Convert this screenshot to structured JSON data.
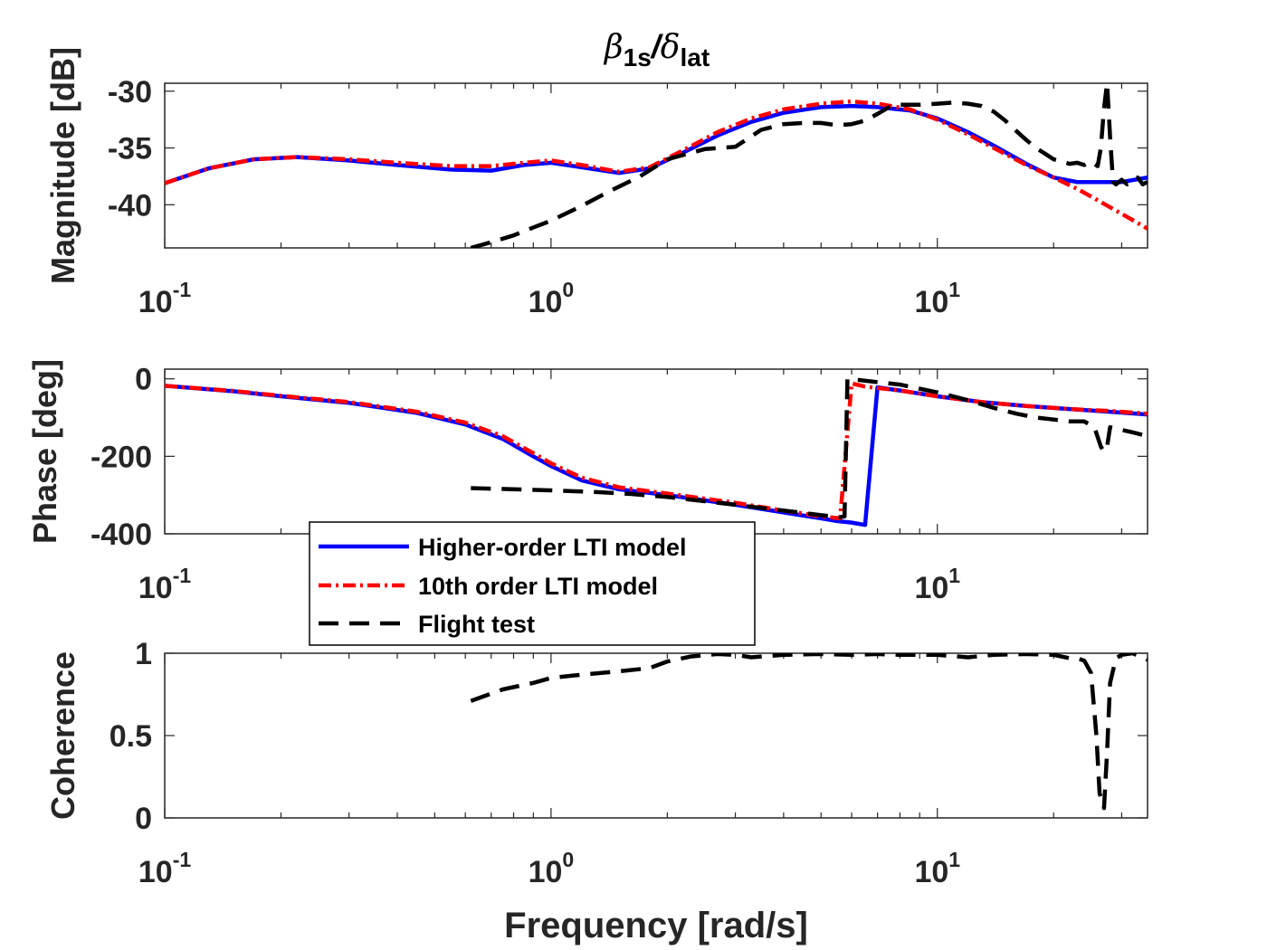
{
  "chart_data": {
    "type": "line",
    "xscale": "log",
    "xlim": [
      0.1,
      35
    ],
    "title_parts": {
      "numerator": "β",
      "numerator_sub": "1s",
      "slash": "/",
      "denominator": "δ",
      "denominator_sub": "lat"
    },
    "xlabel": "Frequency [rad/s]",
    "x_tick_labels": [
      {
        "value": 0.1,
        "base": "10",
        "exp": "-1"
      },
      {
        "value": 1,
        "base": "10",
        "exp": "0"
      },
      {
        "value": 10,
        "base": "10",
        "exp": "1"
      }
    ],
    "legend": [
      {
        "series": "Higher-order LTI model",
        "label": "Higher-order LTI model",
        "color": "#0000ff",
        "style": "solid"
      },
      {
        "series": "10th order LTI model",
        "label": "10th order LTI model",
        "color": "#ff0000",
        "style": "dashdot"
      },
      {
        "series": "Flight test",
        "label": "Flight test",
        "color": "#000000",
        "style": "dashed"
      }
    ],
    "panels": [
      {
        "name": "magnitude",
        "ylabel": "Magnitude [dB]",
        "ylim": [
          -43.8,
          -29.3
        ],
        "yticks": [
          -30,
          -35,
          -40
        ],
        "ytick_labels": [
          "-30",
          "-35",
          "-40"
        ],
        "series": [
          {
            "name": "Higher-order LTI model",
            "color": "#0000ff",
            "dash": "",
            "x": [
              0.1,
              0.13,
              0.17,
              0.22,
              0.3,
              0.4,
              0.55,
              0.7,
              0.85,
              1.0,
              1.2,
              1.5,
              1.8,
              2.2,
              2.7,
              3.3,
              4.0,
              5.0,
              6.0,
              7.0,
              8.5,
              10.0,
              12.0,
              14.0,
              17.0,
              20.0,
              23.0,
              26.0,
              30.0,
              35.0
            ],
            "y": [
              -38.1,
              -36.8,
              -36.0,
              -35.8,
              -36.1,
              -36.5,
              -36.9,
              -37.0,
              -36.5,
              -36.3,
              -36.7,
              -37.2,
              -36.8,
              -35.4,
              -33.9,
              -32.7,
              -31.9,
              -31.4,
              -31.3,
              -31.4,
              -31.7,
              -32.4,
              -33.6,
              -34.8,
              -36.4,
              -37.6,
              -38.0,
              -38.0,
              -38.0,
              -37.6
            ]
          },
          {
            "name": "10th order LTI model",
            "color": "#ff0000",
            "dash": "14,5,3,5",
            "x": [
              0.1,
              0.13,
              0.17,
              0.22,
              0.3,
              0.4,
              0.55,
              0.7,
              0.85,
              1.0,
              1.2,
              1.5,
              1.8,
              2.2,
              2.7,
              3.3,
              4.0,
              5.0,
              6.0,
              7.0,
              8.5,
              10.0,
              12.0,
              14.0,
              17.0,
              20.0,
              23.0,
              26.0,
              30.0,
              35.0
            ],
            "y": [
              -38.1,
              -36.8,
              -36.0,
              -35.8,
              -36.0,
              -36.3,
              -36.6,
              -36.6,
              -36.3,
              -36.1,
              -36.5,
              -37.1,
              -36.7,
              -35.2,
              -33.6,
              -32.4,
              -31.6,
              -31.1,
              -30.9,
              -31.1,
              -31.6,
              -32.5,
              -33.8,
              -35.0,
              -36.5,
              -37.6,
              -38.6,
              -39.6,
              -40.8,
              -42.1
            ]
          },
          {
            "name": "Flight test",
            "color": "#000000",
            "dash": "22,12",
            "x": [
              0.62,
              0.7,
              0.8,
              0.9,
              1.0,
              1.2,
              1.4,
              1.7,
              2.0,
              2.5,
              3.0,
              3.5,
              4.0,
              4.5,
              5.0,
              5.5,
              6.0,
              6.5,
              7.0,
              7.5,
              8.0,
              9.0,
              10.0,
              11.0,
              12.0,
              13.0,
              14.0,
              15.0,
              16.0,
              17.0,
              18.0,
              19.0,
              20.0,
              21.0,
              22.0,
              23.0,
              24.0,
              25.0,
              26.0,
              26.5,
              27.0,
              27.5,
              28.0,
              28.5,
              29.0,
              30.0,
              31.0,
              32.0,
              33.0,
              34.0,
              35.0
            ],
            "y": [
              -43.8,
              -43.3,
              -42.7,
              -42.0,
              -41.4,
              -40.1,
              -38.9,
              -37.5,
              -36.0,
              -35.1,
              -34.9,
              -33.4,
              -32.9,
              -32.8,
              -32.8,
              -33.0,
              -32.9,
              -32.6,
              -32.0,
              -31.4,
              -31.2,
              -31.2,
              -31.1,
              -31.0,
              -31.1,
              -31.3,
              -31.8,
              -32.6,
              -33.5,
              -34.3,
              -35.0,
              -35.5,
              -36.0,
              -36.2,
              -36.4,
              -36.3,
              -36.5,
              -36.2,
              -36.6,
              -35.0,
              -31.5,
              -29.3,
              -34.0,
              -38.0,
              -38.2,
              -37.8,
              -38.2,
              -37.9,
              -37.6,
              -38.2,
              -38.0
            ]
          }
        ]
      },
      {
        "name": "phase",
        "ylabel": "Phase [deg]",
        "ylim": [
          -400,
          25
        ],
        "yticks": [
          0,
          -200,
          -400
        ],
        "ytick_labels": [
          "0",
          "-200",
          "-400"
        ],
        "series": [
          {
            "name": "Higher-order LTI model",
            "color": "#0000ff",
            "dash": "",
            "x": [
              0.1,
              0.15,
              0.2,
              0.3,
              0.45,
              0.6,
              0.75,
              0.9,
              1.0,
              1.2,
              1.5,
              2.0,
              3.0,
              4.0,
              5.0,
              5.5,
              6.0,
              6.5,
              7.0,
              8.0,
              10.0,
              13.0,
              17.0,
              22.0,
              28.0,
              35.0
            ],
            "y": [
              -18,
              -32,
              -45,
              -62,
              -88,
              -118,
              -155,
              -200,
              -225,
              -262,
              -285,
              -300,
              -325,
              -345,
              -360,
              -367,
              -371,
              -377,
              -22,
              -30,
              -45,
              -60,
              -70,
              -78,
              -85,
              -92
            ]
          },
          {
            "name": "10th order LTI model",
            "color": "#ff0000",
            "dash": "14,5,3,5",
            "x": [
              0.1,
              0.15,
              0.2,
              0.3,
              0.45,
              0.6,
              0.75,
              0.9,
              1.0,
              1.2,
              1.5,
              2.0,
              3.0,
              4.0,
              5.0,
              5.6,
              6.0,
              6.5,
              8.0,
              10.0,
              13.0,
              17.0,
              22.0,
              28.0,
              35.0
            ],
            "y": [
              -18,
              -31,
              -44,
              -60,
              -85,
              -113,
              -148,
              -192,
              -218,
              -255,
              -280,
              -296,
              -320,
              -340,
              -355,
              -360,
              -12,
              -20,
              -30,
              -45,
              -60,
              -70,
              -78,
              -83,
              -90
            ]
          },
          {
            "name": "Flight test",
            "color": "#000000",
            "dash": "22,12",
            "x": [
              0.62,
              0.8,
              1.0,
              1.3,
              1.6,
              2.0,
              2.5,
              3.0,
              4.0,
              5.0,
              5.6,
              5.75,
              5.85,
              6.5,
              8.0,
              10.0,
              12.0,
              14.0,
              16.0,
              18.0,
              20.0,
              22.0,
              24.0,
              25.5,
              26.5,
              27.0,
              27.5,
              28.0,
              29.0,
              30.0,
              32.0,
              35.0
            ],
            "y": [
              -282,
              -285,
              -288,
              -292,
              -297,
              -305,
              -316,
              -325,
              -340,
              -352,
              -357,
              -355,
              0,
              -5,
              -15,
              -35,
              -55,
              -75,
              -90,
              -100,
              -105,
              -110,
              -110,
              -125,
              -175,
              -188,
              -175,
              -125,
              -128,
              -132,
              -138,
              -148
            ]
          }
        ]
      },
      {
        "name": "coherence",
        "ylabel": "Coherence",
        "ylim": [
          0,
          1
        ],
        "yticks": [
          1,
          0.5,
          0
        ],
        "ytick_labels": [
          "1",
          "0.5",
          "0"
        ],
        "series": [
          {
            "name": "Flight test",
            "color": "#000000",
            "dash": "22,12",
            "x": [
              0.62,
              0.75,
              0.9,
              1.0,
              1.2,
              1.5,
              1.8,
              2.0,
              2.3,
              2.7,
              3.0,
              3.3,
              4.0,
              5.0,
              6.0,
              7.0,
              8.0,
              10.0,
              12.0,
              14.0,
              17.0,
              20.0,
              22.0,
              23.0,
              24.0,
              25.0,
              25.8,
              26.3,
              27.0,
              27.5,
              28.0,
              29.0,
              30.0,
              32.0,
              35.0
            ],
            "y": [
              0.71,
              0.78,
              0.82,
              0.85,
              0.87,
              0.89,
              0.91,
              0.95,
              0.98,
              0.995,
              0.99,
              0.975,
              0.99,
              0.995,
              0.99,
              0.995,
              0.99,
              0.99,
              0.975,
              0.99,
              0.995,
              0.99,
              0.97,
              0.97,
              0.955,
              0.88,
              0.5,
              0.15,
              0.06,
              0.4,
              0.82,
              0.97,
              0.99,
              1.0,
              0.96
            ]
          }
        ]
      }
    ]
  }
}
